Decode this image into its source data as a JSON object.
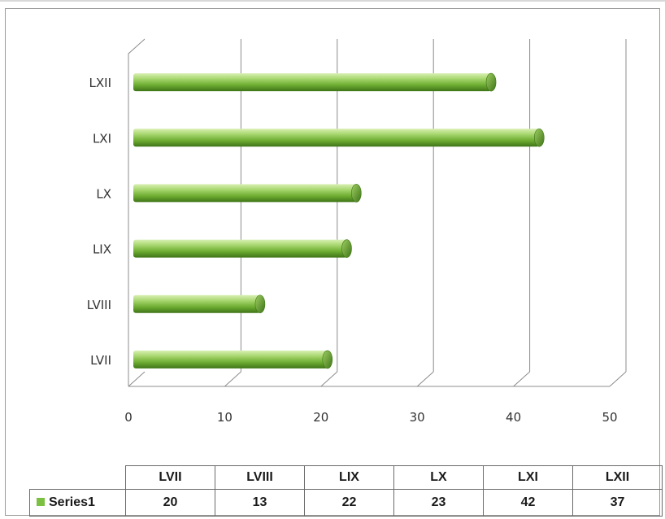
{
  "chart_data": {
    "type": "bar",
    "orientation": "horizontal",
    "categories": [
      "LVII",
      "LVIII",
      "LIX",
      "LX",
      "LXI",
      "LXII"
    ],
    "series": [
      {
        "name": "Series1",
        "values": [
          20,
          13,
          22,
          23,
          42,
          37
        ]
      }
    ],
    "xlim": [
      0,
      50
    ],
    "x_ticks": [
      "0",
      "10",
      "20",
      "30",
      "40",
      "50"
    ],
    "grid": true,
    "legend": "data-table",
    "bar_color": "#7cc042"
  },
  "table": {
    "header": [
      "LVII",
      "LVIII",
      "LIX",
      "LX",
      "LXI",
      "LXII"
    ],
    "series_label": "Series1",
    "values": [
      "20",
      "13",
      "22",
      "23",
      "42",
      "37"
    ]
  }
}
